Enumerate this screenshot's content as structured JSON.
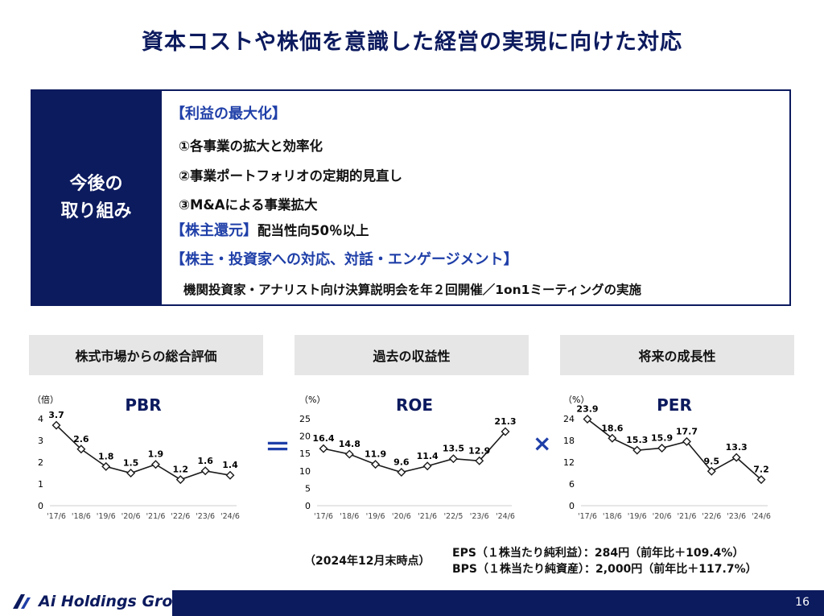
{
  "title": "資本コストや株価を意識した経営の実現に向けた対応",
  "box": {
    "left_line1": "今後の",
    "left_line2": "取り組み",
    "heading1": "【利益の最大化】",
    "item1": "①各事業の拡大と効率化",
    "item2": "②事業ポートフォリオの定期的見直し",
    "item3": "③M&Aによる事業拡大",
    "heading2": "【株主還元】",
    "heading2_text": "配当性向50％以上",
    "heading3": "【株主・投資家への対応、対話・エンゲージメント】",
    "item4": "機関投資家・アナリスト向け決算説明会を年２回開催／1on1ミーティングの実施"
  },
  "headers": {
    "h1": "株式市場からの総合評価",
    "h2": "過去の収益性",
    "h3": "将来の成長性"
  },
  "operators": {
    "equals": "＝",
    "times": "×"
  },
  "notes": {
    "date": "（2024年12月末時点）",
    "eps": "EPS（１株当たり純利益）：284円（前年比＋109.4%）",
    "bps": "BPS（１株当たり純資産）：2,000円（前年比＋117.7%）"
  },
  "footer": {
    "logo_text": "Ai Holdings Group",
    "page": "16"
  },
  "colors": {
    "navy": "#0c1a5e",
    "accent_blue": "#1f3fa8",
    "line": "#1a1a1a",
    "marker_fill": "#ffffff",
    "header_bg": "#e6e6e6"
  },
  "chart_data": [
    {
      "type": "line",
      "title": "PBR",
      "unit_label": "（倍）",
      "categories": [
        "'17/6",
        "'18/6",
        "'19/6",
        "'20/6",
        "'21/6",
        "'22/6",
        "'23/6",
        "'24/6"
      ],
      "values": [
        3.7,
        2.6,
        1.8,
        1.5,
        1.9,
        1.2,
        1.6,
        1.4
      ],
      "labels": [
        "3.7",
        "2.6",
        "1.8",
        "1.5",
        "1.9",
        "1.2",
        "1.6",
        "1.4"
      ],
      "yticks": [
        "0",
        "1",
        "2",
        "3",
        "4"
      ],
      "ylim": [
        0,
        4
      ],
      "grid": false
    },
    {
      "type": "line",
      "title": "ROE",
      "unit_label": "（%）",
      "categories": [
        "'17/6",
        "'18/6",
        "'19/6",
        "'20/6",
        "'21/6",
        "'22/5",
        "'23/6",
        "'24/6"
      ],
      "values": [
        16.4,
        14.8,
        11.9,
        9.6,
        11.4,
        13.5,
        12.9,
        21.3
      ],
      "labels": [
        "16.4",
        "14.8",
        "11.9",
        "9.6",
        "11.4",
        "13.5",
        "12.9",
        "21.3"
      ],
      "yticks": [
        "0",
        "5",
        "10",
        "15",
        "20",
        "25"
      ],
      "ylim": [
        0,
        25
      ],
      "grid": false
    },
    {
      "type": "line",
      "title": "PER",
      "unit_label": "（%）",
      "categories": [
        "'17/6",
        "'18/6",
        "'19/6",
        "'20/6",
        "'21/6",
        "'22/6",
        "'23/6",
        "'24/6"
      ],
      "values": [
        23.9,
        18.6,
        15.3,
        15.9,
        17.7,
        9.5,
        13.3,
        7.2
      ],
      "labels": [
        "23.9",
        "18.6",
        "15.3",
        "15.9",
        "17.7",
        "9.5",
        "13.3",
        "7.2"
      ],
      "yticks": [
        "0",
        "6",
        "12",
        "18",
        "24"
      ],
      "ylim": [
        0,
        24
      ],
      "grid": false
    }
  ]
}
